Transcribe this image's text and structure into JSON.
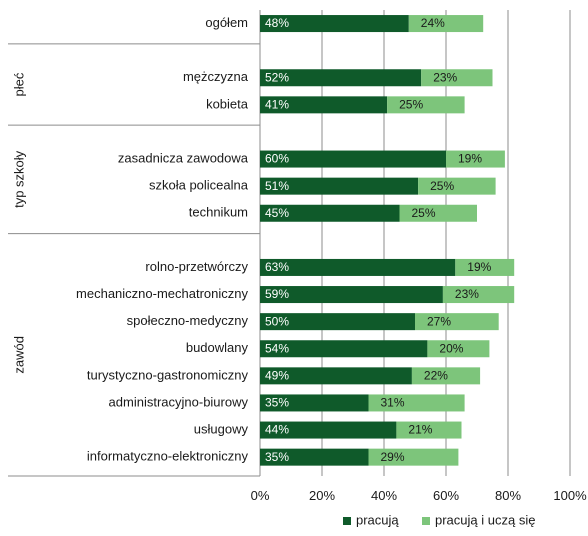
{
  "chart_data": {
    "type": "bar",
    "orientation": "horizontal",
    "stacked": true,
    "title": "",
    "xlabel": "",
    "ylabel": "",
    "xlim": [
      0,
      100
    ],
    "x_ticks": [
      "0%",
      "20%",
      "40%",
      "60%",
      "80%",
      "100%"
    ],
    "x_tick_values": [
      0,
      20,
      40,
      60,
      80,
      100
    ],
    "grid": "vertical",
    "legend_position": "bottom-right",
    "colors": {
      "pracuja": "#0f5a2a",
      "pracuja_i_ucza_sie": "#7dc57b"
    },
    "groups": [
      {
        "label": "",
        "categories": [
          "ogółem"
        ]
      },
      {
        "label": "płeć",
        "categories": [
          "mężczyzna",
          "kobieta"
        ]
      },
      {
        "label": "typ szkoły",
        "categories": [
          "zasadnicza zawodowa",
          "szkoła policealna",
          "technikum"
        ]
      },
      {
        "label": "zawód",
        "categories": [
          "rolno-przetwórczy",
          "mechaniczno-mechatroniczny",
          "społeczno-medyczny",
          "budowlany",
          "turystyczno-gastronomiczny",
          "administracyjno-biurowy",
          "usługowy",
          "informatyczno-elektroniczny"
        ]
      }
    ],
    "categories": [
      "ogółem",
      "mężczyzna",
      "kobieta",
      "zasadnicza zawodowa",
      "szkoła policealna",
      "technikum",
      "rolno-przetwórczy",
      "mechaniczno-mechatroniczny",
      "społeczno-medyczny",
      "budowlany",
      "turystyczno-gastronomiczny",
      "administracyjno-biurowy",
      "usługowy",
      "informatyczno-elektroniczny"
    ],
    "series": [
      {
        "name": "pracują",
        "values": [
          48,
          52,
          41,
          60,
          51,
          45,
          63,
          59,
          50,
          54,
          49,
          35,
          44,
          35
        ],
        "labels": [
          "48%",
          "52%",
          "41%",
          "60%",
          "51%",
          "45%",
          "63%",
          "59%",
          "50%",
          "54%",
          "49%",
          "35%",
          "44%",
          "35%"
        ]
      },
      {
        "name": "pracują i uczą się",
        "values": [
          24,
          23,
          25,
          19,
          25,
          25,
          19,
          23,
          27,
          20,
          22,
          31,
          21,
          29
        ],
        "labels": [
          "24%",
          "23%",
          "25%",
          "19%",
          "25%",
          "25%",
          "19%",
          "23%",
          "27%",
          "20%",
          "22%",
          "31%",
          "21%",
          "29%"
        ]
      }
    ]
  }
}
